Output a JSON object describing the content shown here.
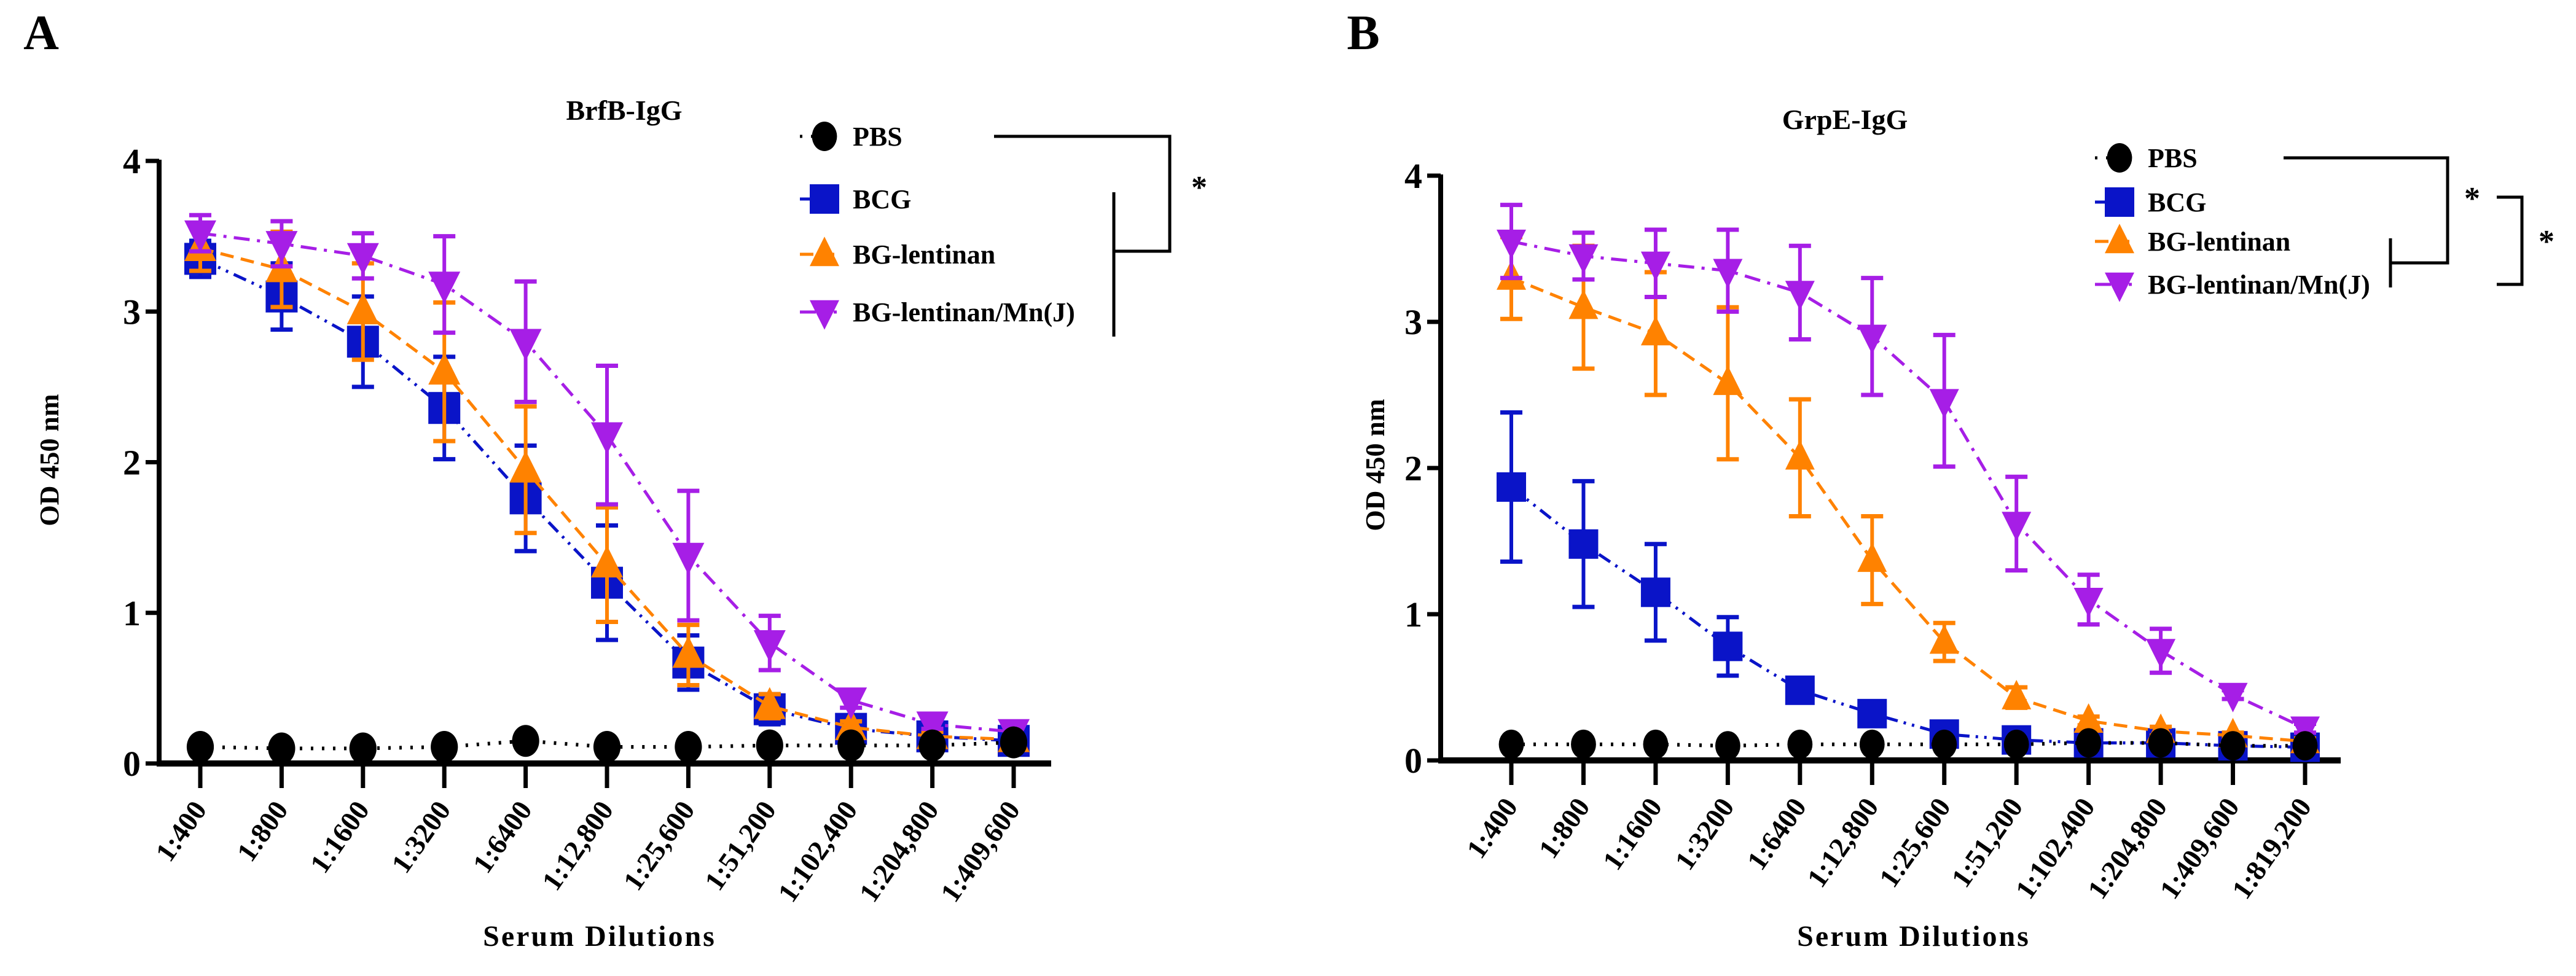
{
  "chart_data": [
    {
      "panel_label": "A",
      "type": "line",
      "title": "BrfB-IgG",
      "xlabel": "Serum Dilutions",
      "ylabel": "OD 450 nm",
      "ylim": [
        0,
        4
      ],
      "yticks": [
        "0",
        "1",
        "2",
        "3",
        "4"
      ],
      "categories": [
        "1:400",
        "1:800",
        "1:1600",
        "1:3200",
        "1:6400",
        "1:12,800",
        "1:25,600",
        "1:51,200",
        "1:102,400",
        "1:204,800",
        "1:409,600"
      ],
      "legend_position": "top-right",
      "series": [
        {
          "name": "PBS",
          "color": "#000000",
          "marker": "circle",
          "dash": "dotted",
          "values": [
            0.11,
            0.1,
            0.1,
            0.11,
            0.15,
            0.11,
            0.11,
            0.12,
            0.12,
            0.12,
            0.14
          ],
          "errors": [
            0,
            0,
            0,
            0,
            0,
            0,
            0,
            0,
            0,
            0,
            0
          ]
        },
        {
          "name": "BCG",
          "color": "#0a14c8",
          "marker": "square",
          "dash": "dashdotdot",
          "values": [
            3.35,
            3.1,
            2.8,
            2.36,
            1.76,
            1.2,
            0.67,
            0.36,
            0.23,
            0.18,
            0.15
          ],
          "errors": [
            0.12,
            0.22,
            0.3,
            0.34,
            0.35,
            0.38,
            0.18,
            0.1,
            0.05,
            0.03,
            0.03
          ]
        },
        {
          "name": "BG-lentinan",
          "color": "#ff8200",
          "marker": "triangle-up",
          "dash": "dashed",
          "values": [
            3.42,
            3.28,
            3.0,
            2.6,
            1.95,
            1.32,
            0.72,
            0.38,
            0.24,
            0.18,
            0.16
          ],
          "errors": [
            0.15,
            0.25,
            0.32,
            0.46,
            0.42,
            0.38,
            0.2,
            0.08,
            0.04,
            0.03,
            0.02
          ]
        },
        {
          "name": "BG-lentinan/Mn(J)",
          "color": "#a61ee6",
          "marker": "triangle-down",
          "dash": "dashdot",
          "values": [
            3.52,
            3.45,
            3.37,
            3.18,
            2.8,
            2.18,
            1.38,
            0.8,
            0.42,
            0.26,
            0.21
          ],
          "errors": [
            0.12,
            0.15,
            0.15,
            0.32,
            0.4,
            0.46,
            0.43,
            0.18,
            0.05,
            0.03,
            0.03
          ]
        }
      ],
      "annotations": [
        "*"
      ]
    },
    {
      "panel_label": "B",
      "type": "line",
      "title": "GrpE-IgG",
      "xlabel": "Serum Dilutions",
      "ylabel": "OD 450 nm",
      "ylim": [
        0,
        4
      ],
      "yticks": [
        "0",
        "1",
        "2",
        "3",
        "4"
      ],
      "categories": [
        "1:400",
        "1:800",
        "1:1600",
        "1:3200",
        "1:6400",
        "1:12,800",
        "1:25,600",
        "1:51,200",
        "1:102,400",
        "1:204,800",
        "1:409,600",
        "1:819,200"
      ],
      "legend_position": "top-right",
      "series": [
        {
          "name": "PBS",
          "color": "#000000",
          "marker": "circle",
          "dash": "dotted",
          "values": [
            0.11,
            0.11,
            0.11,
            0.1,
            0.11,
            0.11,
            0.11,
            0.11,
            0.12,
            0.12,
            0.1,
            0.1
          ],
          "errors": [
            0,
            0,
            0,
            0,
            0,
            0,
            0,
            0,
            0,
            0,
            0,
            0
          ]
        },
        {
          "name": "BCG",
          "color": "#0a14c8",
          "marker": "square",
          "dash": "dashdotdot",
          "values": [
            1.87,
            1.48,
            1.15,
            0.78,
            0.48,
            0.32,
            0.18,
            0.14,
            0.12,
            0.12,
            0.1,
            0.09
          ],
          "errors": [
            0.51,
            0.43,
            0.33,
            0.2,
            0.05,
            0.08,
            0.03,
            0.02,
            0.02,
            0.02,
            0.02,
            0.02
          ]
        },
        {
          "name": "BG-lentinan",
          "color": "#ff8200",
          "marker": "triangle-up",
          "dash": "dashed",
          "values": [
            3.3,
            3.1,
            2.92,
            2.58,
            2.07,
            1.37,
            0.81,
            0.43,
            0.27,
            0.2,
            0.17,
            0.13
          ],
          "errors": [
            0.28,
            0.42,
            0.42,
            0.52,
            0.4,
            0.3,
            0.13,
            0.07,
            0.03,
            0.03,
            0.02,
            0.02
          ]
        },
        {
          "name": "BG-lentinan/Mn(J)",
          "color": "#a61ee6",
          "marker": "triangle-down",
          "dash": "dashdot",
          "values": [
            3.55,
            3.45,
            3.4,
            3.35,
            3.2,
            2.9,
            2.46,
            1.62,
            1.1,
            0.75,
            0.45,
            0.22
          ],
          "errors": [
            0.25,
            0.16,
            0.23,
            0.28,
            0.32,
            0.4,
            0.45,
            0.32,
            0.17,
            0.15,
            0.03,
            0.03
          ]
        }
      ],
      "annotations": [
        "*",
        "*"
      ]
    }
  ]
}
